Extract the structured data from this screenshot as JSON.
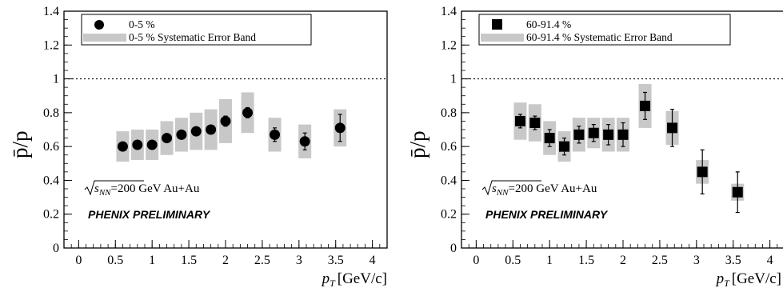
{
  "chart_data": [
    {
      "type": "scatter",
      "xlabel_main": "p",
      "xlabel_sub": "T",
      "xlabel_unit": "[GeV/c]",
      "ylabel": "p̄/p",
      "xlim": [
        -0.2,
        4.2
      ],
      "ylim": [
        0,
        1.4
      ],
      "x_ticks": [
        "0",
        "0.5",
        "1",
        "1.5",
        "2",
        "2.5",
        "3",
        "3.5",
        "4"
      ],
      "y_ticks": [
        "0",
        "0.2",
        "0.4",
        "0.6",
        "0.8",
        "1",
        "1.2",
        "1.4"
      ],
      "reference_line": 1.0,
      "marker": "circle",
      "legend": {
        "marker_label": "0-5 %",
        "band_label": "0-5 % Systematic Error Band",
        "position": "top-left"
      },
      "annotation_energy_sqrt": "s",
      "annotation_energy_sub": "NN",
      "annotation_energy_rest": "=200 GeV Au+Au",
      "annotation_prelim": "PHENIX PRELIMINARY",
      "series": [
        {
          "x": [
            0.6,
            0.8,
            1.0,
            1.2,
            1.4,
            1.6,
            1.8,
            2.0,
            2.3,
            2.67,
            3.08,
            3.56
          ],
          "y": [
            0.6,
            0.61,
            0.61,
            0.65,
            0.67,
            0.69,
            0.7,
            0.75,
            0.8,
            0.67,
            0.63,
            0.71
          ],
          "stat_err": [
            0.02,
            0.02,
            0.02,
            0.02,
            0.02,
            0.02,
            0.02,
            0.03,
            0.03,
            0.04,
            0.05,
            0.08
          ],
          "sys_err": [
            0.09,
            0.09,
            0.09,
            0.1,
            0.1,
            0.11,
            0.12,
            0.13,
            0.12,
            0.1,
            0.1,
            0.11
          ]
        }
      ]
    },
    {
      "type": "scatter",
      "xlabel_main": "p",
      "xlabel_sub": "T",
      "xlabel_unit": "[GeV/c]",
      "ylabel": "p̄/p",
      "xlim": [
        -0.2,
        4.2
      ],
      "ylim": [
        0,
        1.4
      ],
      "x_ticks": [
        "0",
        "0.5",
        "1",
        "1.5",
        "2",
        "2.5",
        "3",
        "3.5",
        "4"
      ],
      "y_ticks": [
        "0",
        "0.2",
        "0.4",
        "0.6",
        "0.8",
        "1",
        "1.2",
        "1.4"
      ],
      "reference_line": 1.0,
      "marker": "square",
      "legend": {
        "marker_label": "60-91.4 %",
        "band_label": "60-91.4 % Systematic Error Band",
        "position": "top-left"
      },
      "annotation_energy_sqrt": "s",
      "annotation_energy_sub": "NN",
      "annotation_energy_rest": "=200 GeV Au+Au",
      "annotation_prelim": "PHENIX PRELIMINARY",
      "series": [
        {
          "x": [
            0.6,
            0.8,
            1.0,
            1.2,
            1.4,
            1.6,
            1.8,
            2.0,
            2.3,
            2.67,
            3.08,
            3.56
          ],
          "y": [
            0.75,
            0.74,
            0.65,
            0.6,
            0.67,
            0.68,
            0.67,
            0.67,
            0.84,
            0.71,
            0.45,
            0.33
          ],
          "stat_err": [
            0.04,
            0.04,
            0.05,
            0.05,
            0.05,
            0.05,
            0.06,
            0.07,
            0.08,
            0.11,
            0.13,
            0.12
          ],
          "sys_err": [
            0.11,
            0.11,
            0.1,
            0.09,
            0.1,
            0.09,
            0.1,
            0.1,
            0.13,
            0.1,
            0.07,
            0.05
          ]
        }
      ]
    }
  ]
}
